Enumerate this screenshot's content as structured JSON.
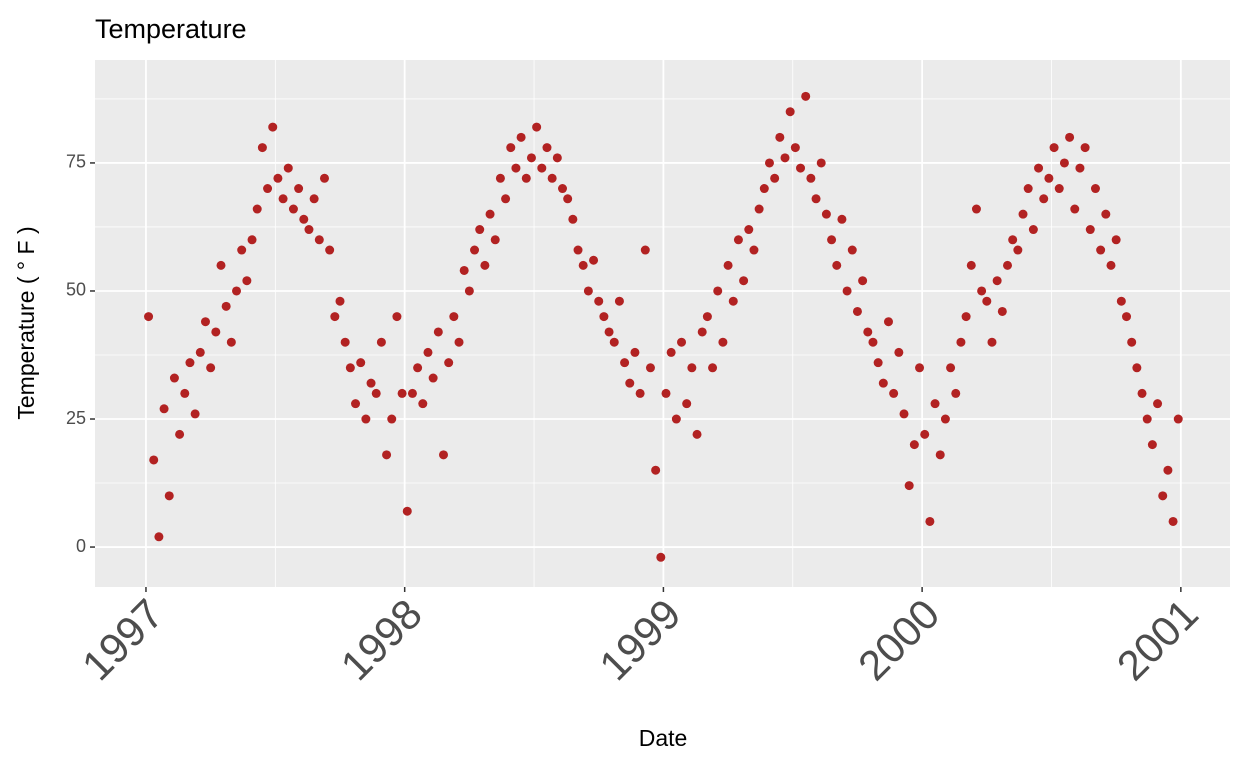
{
  "chart_data": {
    "type": "scatter",
    "title": "Temperature",
    "x_label": "Date",
    "y_label": "Temperature ( ° F )",
    "color": "#b22222",
    "grid": true,
    "xlim": [
      1996.803,
      2001.19
    ],
    "ylim": [
      -7.8,
      95.1
    ],
    "xticks": [
      1997,
      1998,
      1999,
      2000,
      2001
    ],
    "yticks": [
      0,
      25,
      50,
      75
    ],
    "x": [
      1997.01,
      1997.03,
      1997.05,
      1997.07,
      1997.09,
      1997.11,
      1997.13,
      1997.15,
      1997.17,
      1997.19,
      1997.21,
      1997.23,
      1997.25,
      1997.27,
      1997.29,
      1997.31,
      1997.33,
      1997.35,
      1997.37,
      1997.39,
      1997.41,
      1997.43,
      1997.45,
      1997.47,
      1997.49,
      1997.51,
      1997.53,
      1997.55,
      1997.57,
      1997.59,
      1997.61,
      1997.63,
      1997.65,
      1997.67,
      1997.69,
      1997.71,
      1997.73,
      1997.75,
      1997.77,
      1997.79,
      1997.81,
      1997.83,
      1997.85,
      1997.87,
      1997.89,
      1997.91,
      1997.93,
      1997.95,
      1997.97,
      1997.99,
      1998.01,
      1998.03,
      1998.05,
      1998.07,
      1998.09,
      1998.11,
      1998.13,
      1998.15,
      1998.17,
      1998.19,
      1998.21,
      1998.23,
      1998.25,
      1998.27,
      1998.29,
      1998.31,
      1998.33,
      1998.35,
      1998.37,
      1998.39,
      1998.41,
      1998.43,
      1998.45,
      1998.47,
      1998.49,
      1998.51,
      1998.53,
      1998.55,
      1998.57,
      1998.59,
      1998.61,
      1998.63,
      1998.65,
      1998.67,
      1998.69,
      1998.71,
      1998.73,
      1998.75,
      1998.77,
      1998.79,
      1998.81,
      1998.83,
      1998.85,
      1998.87,
      1998.89,
      1998.91,
      1998.93,
      1998.95,
      1998.97,
      1998.99,
      1999.01,
      1999.03,
      1999.05,
      1999.07,
      1999.09,
      1999.11,
      1999.13,
      1999.15,
      1999.17,
      1999.19,
      1999.21,
      1999.23,
      1999.25,
      1999.27,
      1999.29,
      1999.31,
      1999.33,
      1999.35,
      1999.37,
      1999.39,
      1999.41,
      1999.43,
      1999.45,
      1999.47,
      1999.49,
      1999.51,
      1999.53,
      1999.55,
      1999.57,
      1999.59,
      1999.61,
      1999.63,
      1999.65,
      1999.67,
      1999.69,
      1999.71,
      1999.73,
      1999.75,
      1999.77,
      1999.79,
      1999.81,
      1999.83,
      1999.85,
      1999.87,
      1999.89,
      1999.91,
      1999.93,
      1999.95,
      1999.97,
      1999.99,
      2000.01,
      2000.03,
      2000.05,
      2000.07,
      2000.09,
      2000.11,
      2000.13,
      2000.15,
      2000.17,
      2000.19,
      2000.21,
      2000.23,
      2000.25,
      2000.27,
      2000.29,
      2000.31,
      2000.33,
      2000.35,
      2000.37,
      2000.39,
      2000.41,
      2000.43,
      2000.45,
      2000.47,
      2000.49,
      2000.51,
      2000.53,
      2000.55,
      2000.57,
      2000.59,
      2000.61,
      2000.63,
      2000.65,
      2000.67,
      2000.69,
      2000.71,
      2000.73,
      2000.75,
      2000.77,
      2000.79,
      2000.81,
      2000.83,
      2000.85,
      2000.87,
      2000.89,
      2000.91,
      2000.93,
      2000.95,
      2000.97,
      2000.99
    ],
    "values": [
      45,
      17,
      2,
      27,
      10,
      33,
      22,
      30,
      36,
      26,
      38,
      44,
      35,
      42,
      55,
      47,
      40,
      50,
      58,
      52,
      60,
      66,
      78,
      70,
      82,
      72,
      68,
      74,
      66,
      70,
      64,
      62,
      68,
      60,
      72,
      58,
      45,
      48,
      40,
      35,
      28,
      36,
      25,
      32,
      30,
      40,
      18,
      25,
      45,
      30,
      7,
      30,
      35,
      28,
      38,
      33,
      42,
      18,
      36,
      45,
      40,
      54,
      50,
      58,
      62,
      55,
      65,
      60,
      72,
      68,
      78,
      74,
      80,
      72,
      76,
      82,
      74,
      78,
      72,
      76,
      70,
      68,
      64,
      58,
      55,
      50,
      56,
      48,
      45,
      42,
      40,
      48,
      36,
      32,
      38,
      30,
      58,
      35,
      15,
      -2,
      30,
      38,
      25,
      40,
      28,
      35,
      22,
      42,
      45,
      35,
      50,
      40,
      55,
      48,
      60,
      52,
      62,
      58,
      66,
      70,
      75,
      72,
      80,
      76,
      85,
      78,
      74,
      88,
      72,
      68,
      75,
      65,
      60,
      55,
      64,
      50,
      58,
      46,
      52,
      42,
      40,
      36,
      32,
      44,
      30,
      38,
      26,
      12,
      20,
      35,
      22,
      5,
      28,
      18,
      25,
      35,
      30,
      40,
      45,
      55,
      66,
      50,
      48,
      40,
      52,
      46,
      55,
      60,
      58,
      65,
      70,
      62,
      74,
      68,
      72,
      78,
      70,
      75,
      80,
      66,
      74,
      78,
      62,
      70,
      58,
      65,
      55,
      60,
      48,
      45,
      40,
      35,
      30,
      25,
      20,
      28,
      10,
      15,
      5,
      25
    ]
  }
}
